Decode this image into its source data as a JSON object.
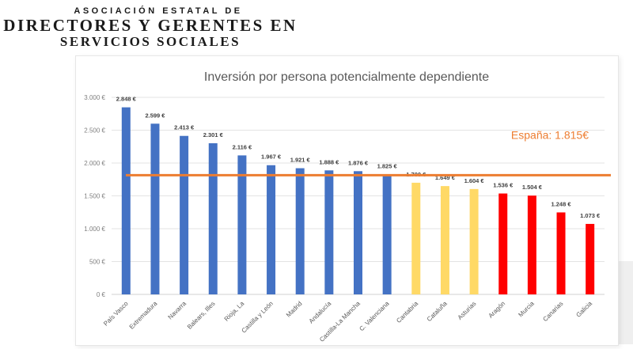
{
  "header": {
    "line1": "ASOCIACIÓN ESTATAL DE",
    "line2": "DIRECTORES Y GERENTES EN",
    "line3": "SERVICIOS SOCIALES"
  },
  "chart_data": {
    "type": "bar",
    "title": "Inversión por persona potencialmente dependiente",
    "categories": [
      "País Vasco",
      "Extremadura",
      "Navarra",
      "Balears, Illes",
      "Rioja, La",
      "Castilla y León",
      "Madrid",
      "Andalucía",
      "Castilla-La Mancha",
      "C. Valenciana",
      "Cantabria",
      "Cataluña",
      "Asturias",
      "Aragón",
      "Murcia",
      "Canarias",
      "Galicia"
    ],
    "values": [
      2848,
      2599,
      2413,
      2301,
      2116,
      1967,
      1921,
      1888,
      1876,
      1825,
      1700,
      1649,
      1604,
      1536,
      1504,
      1248,
      1073
    ],
    "data_labels": [
      "2.848 €",
      "2.599 €",
      "2.413 €",
      "2.301 €",
      "2.116 €",
      "1.967 €",
      "1.921 €",
      "1.888 €",
      "1.876 €",
      "1.825 €",
      "1.700 €",
      "1.649 €",
      "1.604 €",
      "1.536 €",
      "1.504 €",
      "1.248 €",
      "1.073 €"
    ],
    "bar_colors": [
      "#4472C4",
      "#4472C4",
      "#4472C4",
      "#4472C4",
      "#4472C4",
      "#4472C4",
      "#4472C4",
      "#4472C4",
      "#4472C4",
      "#4472C4",
      "#FFD966",
      "#FFD966",
      "#FFD966",
      "#FF0000",
      "#FF0000",
      "#FF0000",
      "#FF0000"
    ],
    "yticks": [
      0,
      500,
      1000,
      1500,
      2000,
      2500,
      3000
    ],
    "ytick_labels": [
      "0 €",
      "500 €",
      "1.000 €",
      "1.500 €",
      "2.000 €",
      "2.500 €",
      "3.000 €"
    ],
    "ylim": [
      0,
      3000
    ],
    "reference_line": {
      "value": 1815,
      "label": "España: 1.815€",
      "color": "#ED7D31"
    },
    "grid": true,
    "xlabel": "",
    "ylabel": ""
  }
}
